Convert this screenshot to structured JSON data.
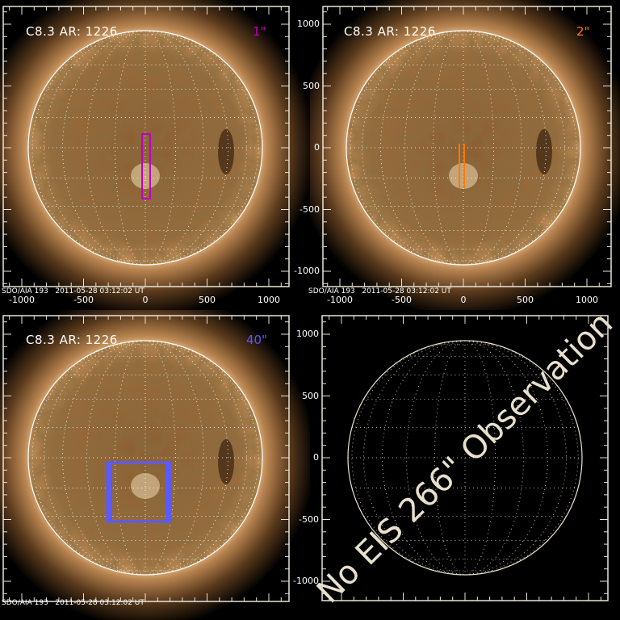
{
  "panels": [
    {
      "title": "C8.3 AR: 1226",
      "slit_label": "1\"",
      "slit_color": "#c000c0",
      "slit_style": "box",
      "slit_arcsec": {
        "x": [
          -26,
          39
        ],
        "y": [
          -412,
          111
        ]
      },
      "footer": "SDO/AIA 193   2011-05-28 03:12:02 UT",
      "x_ticks": [
        "-1000",
        "-500",
        "0",
        "500",
        "1000"
      ],
      "y_ticks": []
    },
    {
      "title": "C8.3 AR: 1226",
      "slit_label": "2\"",
      "slit_color": "#ff7a00",
      "slit_style": "double",
      "slit_arcsec": {
        "x": [
          -39,
          13
        ],
        "y": [
          -327,
          33
        ]
      },
      "footer": "SDO/AIA 193   2011-05-28 03:12:02 UT",
      "x_ticks": [
        "-1000",
        "-500",
        "0",
        "500",
        "1000"
      ],
      "y_ticks": [
        "1000",
        "500",
        "0",
        "-500",
        "-1000"
      ]
    },
    {
      "title": "C8.3 AR: 1226",
      "slit_label": "40\"",
      "slit_color": "#5a5aff",
      "slit_style": "thick",
      "slit_arcsec": {
        "x": [
          -307,
          203
        ],
        "y": [
          -516,
          -39
        ]
      },
      "footer": "SDO/AIA 193   2011-05-28 03:12:02 UT",
      "x_ticks": [],
      "y_ticks": []
    },
    {
      "message": "No EIS 266\" Observation",
      "x_ticks": [],
      "y_ticks": [
        "1000",
        "500",
        "0",
        "-500",
        "-1000"
      ]
    }
  ]
}
